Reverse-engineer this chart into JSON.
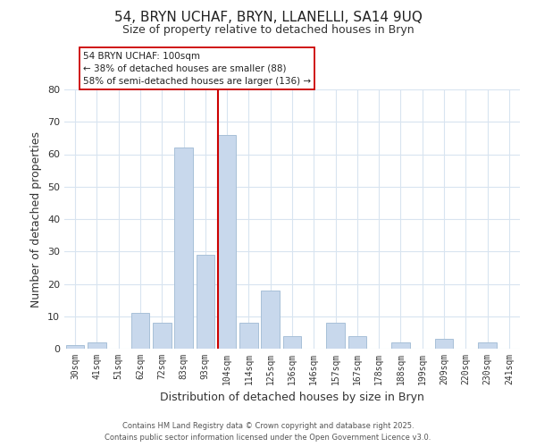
{
  "title": "54, BRYN UCHAF, BRYN, LLANELLI, SA14 9UQ",
  "subtitle": "Size of property relative to detached houses in Bryn",
  "xlabel": "Distribution of detached houses by size in Bryn",
  "ylabel": "Number of detached properties",
  "categories": [
    "30sqm",
    "41sqm",
    "51sqm",
    "62sqm",
    "72sqm",
    "83sqm",
    "93sqm",
    "104sqm",
    "114sqm",
    "125sqm",
    "136sqm",
    "146sqm",
    "157sqm",
    "167sqm",
    "178sqm",
    "188sqm",
    "199sqm",
    "209sqm",
    "220sqm",
    "230sqm",
    "241sqm"
  ],
  "values": [
    1,
    2,
    0,
    11,
    8,
    62,
    29,
    66,
    8,
    18,
    4,
    0,
    8,
    4,
    0,
    2,
    0,
    3,
    0,
    2,
    0
  ],
  "bar_color": "#c8d8ec",
  "bar_edge_color": "#a8c0d8",
  "highlight_index": 7,
  "highlight_line_color": "#cc0000",
  "ylim": [
    0,
    80
  ],
  "yticks": [
    0,
    10,
    20,
    30,
    40,
    50,
    60,
    70,
    80
  ],
  "annotation_title": "54 BRYN UCHAF: 100sqm",
  "annotation_line1": "← 38% of detached houses are smaller (88)",
  "annotation_line2": "58% of semi-detached houses are larger (136) →",
  "footer1": "Contains HM Land Registry data © Crown copyright and database right 2025.",
  "footer2": "Contains public sector information licensed under the Open Government Licence v3.0.",
  "background_color": "#ffffff",
  "grid_color": "#d8e4f0"
}
